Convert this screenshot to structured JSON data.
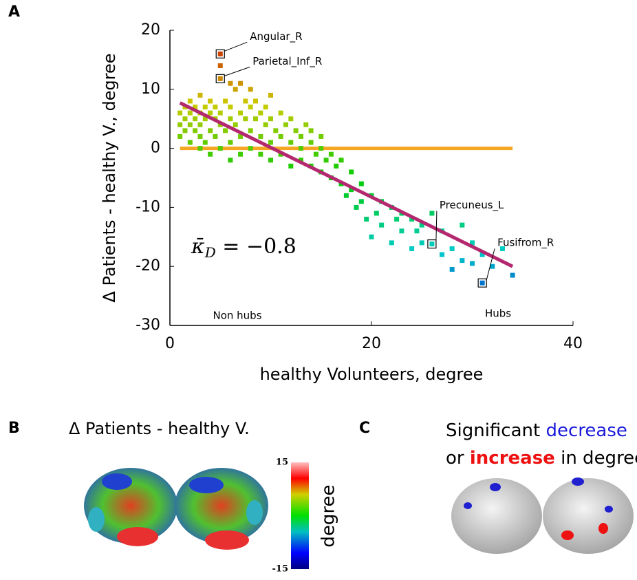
{
  "chart_data": {
    "type": "scatter",
    "panel_label": "A",
    "xlabel": "healthy Volunteers, degree",
    "ylabel": "Δ Patients - healthy V., degree",
    "xlim": [
      0,
      40
    ],
    "xticks": [
      0,
      20,
      40
    ],
    "ylim": [
      -30,
      20
    ],
    "yticks": [
      -30,
      -20,
      -10,
      0,
      10,
      20
    ],
    "colormap": "jet",
    "x": [
      1,
      1,
      1,
      1.5,
      1.5,
      1.5,
      2,
      2,
      2,
      2,
      2.5,
      2.5,
      2.5,
      3,
      3,
      3,
      3,
      3,
      3.5,
      3.5,
      3.5,
      4,
      4,
      4,
      4,
      4.5,
      4.5,
      4.5,
      5,
      5,
      5,
      5,
      5.5,
      5.5,
      6,
      6,
      6,
      6,
      6,
      6.5,
      6.5,
      7,
      7,
      7,
      7,
      7.5,
      7.5,
      8,
      8,
      8,
      8,
      8.5,
      8.5,
      9,
      9,
      9,
      9.5,
      9.5,
      10,
      10,
      10,
      10,
      10.5,
      11,
      11,
      11,
      11.5,
      12,
      12,
      12,
      12.5,
      13,
      13,
      13,
      13.5,
      14,
      14,
      14,
      14.5,
      15,
      15,
      15,
      15.5,
      16,
      16,
      16.5,
      17,
      17,
      17.5,
      18,
      18,
      18.5,
      19,
      19,
      19.5,
      20,
      20,
      20.5,
      21,
      21,
      22,
      22,
      22.5,
      23,
      23,
      24,
      24,
      24.5,
      25,
      25,
      26,
      26,
      27,
      27,
      28,
      28,
      29,
      29,
      30,
      30,
      31,
      31,
      32,
      33,
      34,
      5,
      5
    ],
    "y": [
      4,
      6,
      2,
      5,
      7,
      3,
      8,
      4,
      6,
      1,
      5,
      7,
      3,
      9,
      6,
      4,
      2,
      0,
      7,
      5,
      1,
      8,
      6,
      3,
      -1,
      5,
      7,
      2,
      14,
      6,
      4,
      0,
      8,
      3,
      11,
      7,
      5,
      1,
      -2,
      10,
      4,
      11,
      6,
      2,
      -1,
      8,
      5,
      10,
      7,
      3,
      0,
      5,
      8,
      6,
      2,
      -1,
      7,
      4,
      9,
      5,
      1,
      -2,
      3,
      6,
      2,
      -1,
      4,
      5,
      1,
      -3,
      3,
      2,
      -2,
      0,
      4,
      1,
      -3,
      3,
      -1,
      2,
      -4,
      0,
      -2,
      -5,
      -1,
      -3,
      -6,
      -2,
      -8,
      -4,
      -7,
      -10,
      -6,
      -9,
      -12,
      -8,
      -15,
      -11,
      -9,
      -13,
      -10,
      -16,
      -12,
      -11,
      -14,
      -12,
      -17,
      -14,
      -13,
      -16,
      -16.2,
      -11,
      -14,
      -18,
      -17,
      -20.5,
      -19,
      -13,
      -16,
      -19.5,
      -22.8,
      -18,
      -20,
      -17,
      -21.5,
      16,
      11.8
    ],
    "hline": {
      "y": 0,
      "x": [
        1,
        34
      ],
      "color": "#f5a623"
    },
    "fit": {
      "x": [
        1,
        34
      ],
      "y": [
        7.7,
        -20
      ],
      "color": "#b3286f"
    },
    "annotations": [
      {
        "text": "Angular_R",
        "x": 5,
        "y": 16
      },
      {
        "text": "Parietal_Inf_R",
        "x": 5,
        "y": 11.8
      },
      {
        "text": "Precuneus_L",
        "x": 26,
        "y": -16.2
      },
      {
        "text": "Fusifrom_R",
        "x": 31,
        "y": -22.8
      }
    ],
    "stat": {
      "symbol": "κ̄",
      "subscript": "D",
      "text": " = −0.8"
    },
    "region_labels": [
      "Non hubs",
      "Hubs"
    ]
  },
  "panel_b": {
    "label": "B",
    "title": "Δ Patients - healthy V.",
    "colorbar": {
      "lim": [
        -15,
        15
      ],
      "ticks": [
        15,
        -15
      ],
      "label": "degree"
    }
  },
  "panel_c": {
    "label": "C",
    "line1": [
      "Significant ",
      "decrease"
    ],
    "line2": [
      "or ",
      "increase",
      " in degree"
    ]
  }
}
